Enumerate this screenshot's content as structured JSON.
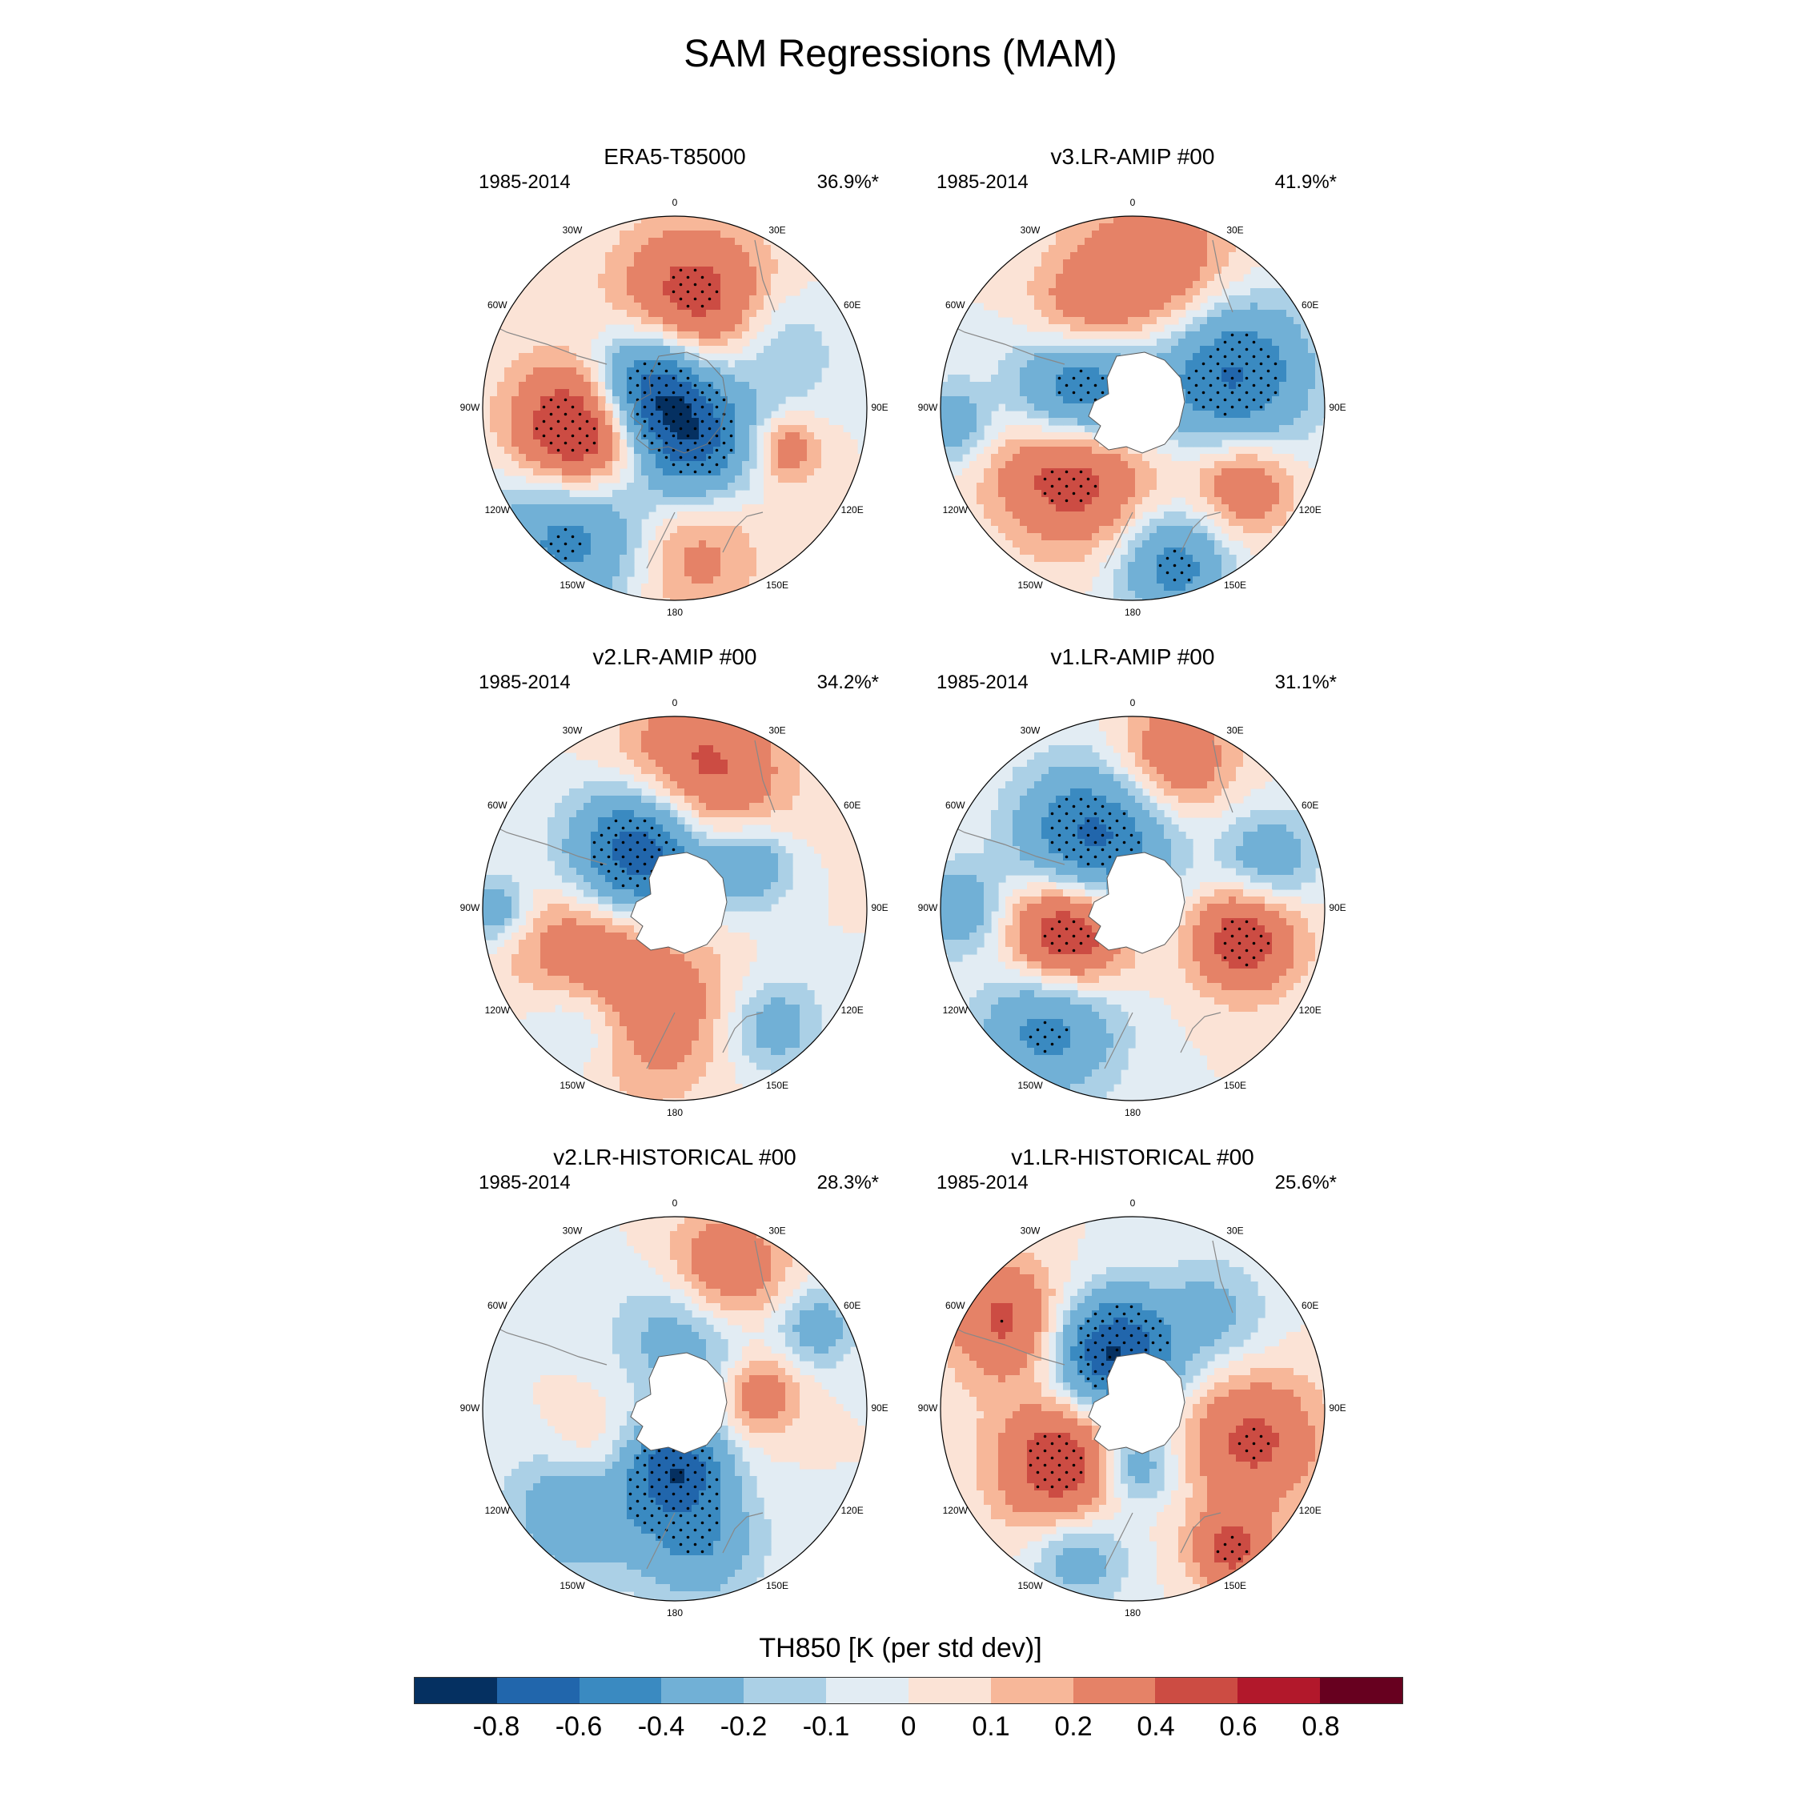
{
  "figure": {
    "title": "SAM Regressions (MAM)"
  },
  "lon_labels": [
    "0",
    "30E",
    "60E",
    "90E",
    "120E",
    "150E",
    "180",
    "150W",
    "120W",
    "90W",
    "60W",
    "30W"
  ],
  "panels": [
    {
      "title": "ERA5-T85000",
      "period": "1985-2014",
      "variance": "36.9%*",
      "antarctica_masked": false,
      "blobs": [
        {
          "lon": -40,
          "r": 0.8,
          "s": 0.3,
          "v": -0.55
        },
        {
          "lon": -75,
          "r": 0.5,
          "s": 0.25,
          "v": 0.85
        },
        {
          "lon": -130,
          "r": 0.18,
          "s": 0.22,
          "v": -0.85
        },
        {
          "lon": 170,
          "r": 0.55,
          "s": 0.28,
          "v": 0.55
        },
        {
          "lon": 30,
          "r": 0.2,
          "s": 0.22,
          "v": -0.65
        },
        {
          "lon": 70,
          "r": 0.62,
          "s": 0.12,
          "v": 0.35
        },
        {
          "lon": 120,
          "r": 0.6,
          "s": 0.22,
          "v": -0.25
        },
        {
          "lon": 5,
          "r": 0.75,
          "s": 0.25,
          "v": 0.3
        }
      ]
    },
    {
      "title": "v3.LR-AMIP  #00",
      "period": "1985-2014",
      "variance": "41.9%*",
      "antarctica_masked": true,
      "blobs": [
        {
          "lon": -50,
          "r": 0.4,
          "s": 0.28,
          "v": 0.75
        },
        {
          "lon": -100,
          "r": 0.28,
          "s": 0.25,
          "v": -0.9
        },
        {
          "lon": 110,
          "r": 0.55,
          "s": 0.28,
          "v": -0.65
        },
        {
          "lon": 15,
          "r": 0.85,
          "s": 0.2,
          "v": -0.5
        },
        {
          "lon": 55,
          "r": 0.7,
          "s": 0.18,
          "v": 0.4
        },
        {
          "lon": 170,
          "r": 0.72,
          "s": 0.3,
          "v": 0.4
        },
        {
          "lon": -150,
          "r": 0.55,
          "s": 0.2,
          "v": 0.3
        },
        {
          "lon": -85,
          "r": 0.95,
          "s": 0.15,
          "v": -0.35
        }
      ]
    },
    {
      "title": "v2.LR-AMIP  #00",
      "period": "1985-2014",
      "variance": "34.2%*",
      "antarctica_masked": true,
      "blobs": [
        {
          "lon": -40,
          "r": 0.7,
          "s": 0.22,
          "v": -0.5
        },
        {
          "lon": -20,
          "r": 0.55,
          "s": 0.3,
          "v": 0.45
        },
        {
          "lon": -60,
          "r": 0.55,
          "s": 0.25,
          "v": 0.4
        },
        {
          "lon": -150,
          "r": 0.35,
          "s": 0.25,
          "v": -0.85
        },
        {
          "lon": 170,
          "r": 0.7,
          "s": 0.3,
          "v": 0.5
        },
        {
          "lon": 120,
          "r": 0.45,
          "s": 0.15,
          "v": -0.4
        },
        {
          "lon": 40,
          "r": 0.8,
          "s": 0.18,
          "v": -0.3
        },
        {
          "lon": -90,
          "r": 0.95,
          "s": 0.12,
          "v": -0.35
        }
      ]
    },
    {
      "title": "v1.LR-AMIP  #00",
      "period": "1985-2014",
      "variance": "31.1%*",
      "antarctica_masked": true,
      "blobs": [
        {
          "lon": -35,
          "r": 0.75,
          "s": 0.25,
          "v": -0.5
        },
        {
          "lon": -70,
          "r": 0.35,
          "s": 0.22,
          "v": 0.75
        },
        {
          "lon": -150,
          "r": 0.4,
          "s": 0.28,
          "v": -0.7
        },
        {
          "lon": 75,
          "r": 0.6,
          "s": 0.2,
          "v": 0.55
        },
        {
          "lon": 110,
          "r": 0.75,
          "s": 0.18,
          "v": -0.35
        },
        {
          "lon": 165,
          "r": 0.8,
          "s": 0.22,
          "v": 0.4
        },
        {
          "lon": -90,
          "r": 0.92,
          "s": 0.15,
          "v": -0.4
        }
      ]
    },
    {
      "title": "v2.LR-HISTORICAL  #00",
      "period": "1985-2014",
      "variance": "28.3%*",
      "antarctica_masked": true,
      "blobs": [
        {
          "lon": -45,
          "r": 0.7,
          "s": 0.25,
          "v": -0.45
        },
        {
          "lon": 10,
          "r": 0.7,
          "s": 0.22,
          "v": -0.4
        },
        {
          "lon": 0,
          "r": 0.3,
          "s": 0.18,
          "v": -0.7
        },
        {
          "lon": 170,
          "r": 0.4,
          "s": 0.25,
          "v": -0.35
        },
        {
          "lon": 160,
          "r": 0.75,
          "s": 0.22,
          "v": 0.45
        },
        {
          "lon": 100,
          "r": 0.45,
          "s": 0.15,
          "v": 0.35
        },
        {
          "lon": 120,
          "r": 0.85,
          "s": 0.15,
          "v": -0.3
        },
        {
          "lon": -60,
          "r": 0.5,
          "s": 0.2,
          "v": 0.25
        }
      ]
    },
    {
      "title": "v1.LR-HISTORICAL  #00",
      "period": "1985-2014",
      "variance": "25.6%*",
      "antarctica_masked": true,
      "blobs": [
        {
          "lon": -50,
          "r": 0.45,
          "s": 0.25,
          "v": 0.6
        },
        {
          "lon": -160,
          "r": 0.3,
          "s": 0.22,
          "v": -0.85
        },
        {
          "lon": 75,
          "r": 0.65,
          "s": 0.25,
          "v": 0.45
        },
        {
          "lon": 35,
          "r": 0.9,
          "s": 0.15,
          "v": 0.45
        },
        {
          "lon": -125,
          "r": 0.8,
          "s": 0.22,
          "v": 0.45
        },
        {
          "lon": 140,
          "r": 0.65,
          "s": 0.2,
          "v": -0.25
        },
        {
          "lon": -20,
          "r": 0.8,
          "s": 0.18,
          "v": -0.35
        },
        {
          "lon": 0,
          "r": 0.3,
          "s": 0.15,
          "v": -0.45
        }
      ]
    }
  ],
  "colorbar": {
    "title": "TH850 [K (per std dev)]",
    "colors": [
      "#053061",
      "#2166ac",
      "#3a8ac1",
      "#71b0d6",
      "#abd0e6",
      "#e2ecf3",
      "#fbe3d6",
      "#f7b799",
      "#e58267",
      "#cc4c43",
      "#b2182b",
      "#67001f"
    ],
    "levels": [
      -0.8,
      -0.6,
      -0.4,
      -0.2,
      -0.1,
      0,
      0.1,
      0.2,
      0.4,
      0.6,
      0.8
    ],
    "tick_labels": [
      "-0.8",
      "-0.6",
      "-0.4",
      "-0.2",
      "-0.1",
      "0",
      "0.1",
      "0.2",
      "0.4",
      "0.6",
      "0.8"
    ]
  }
}
